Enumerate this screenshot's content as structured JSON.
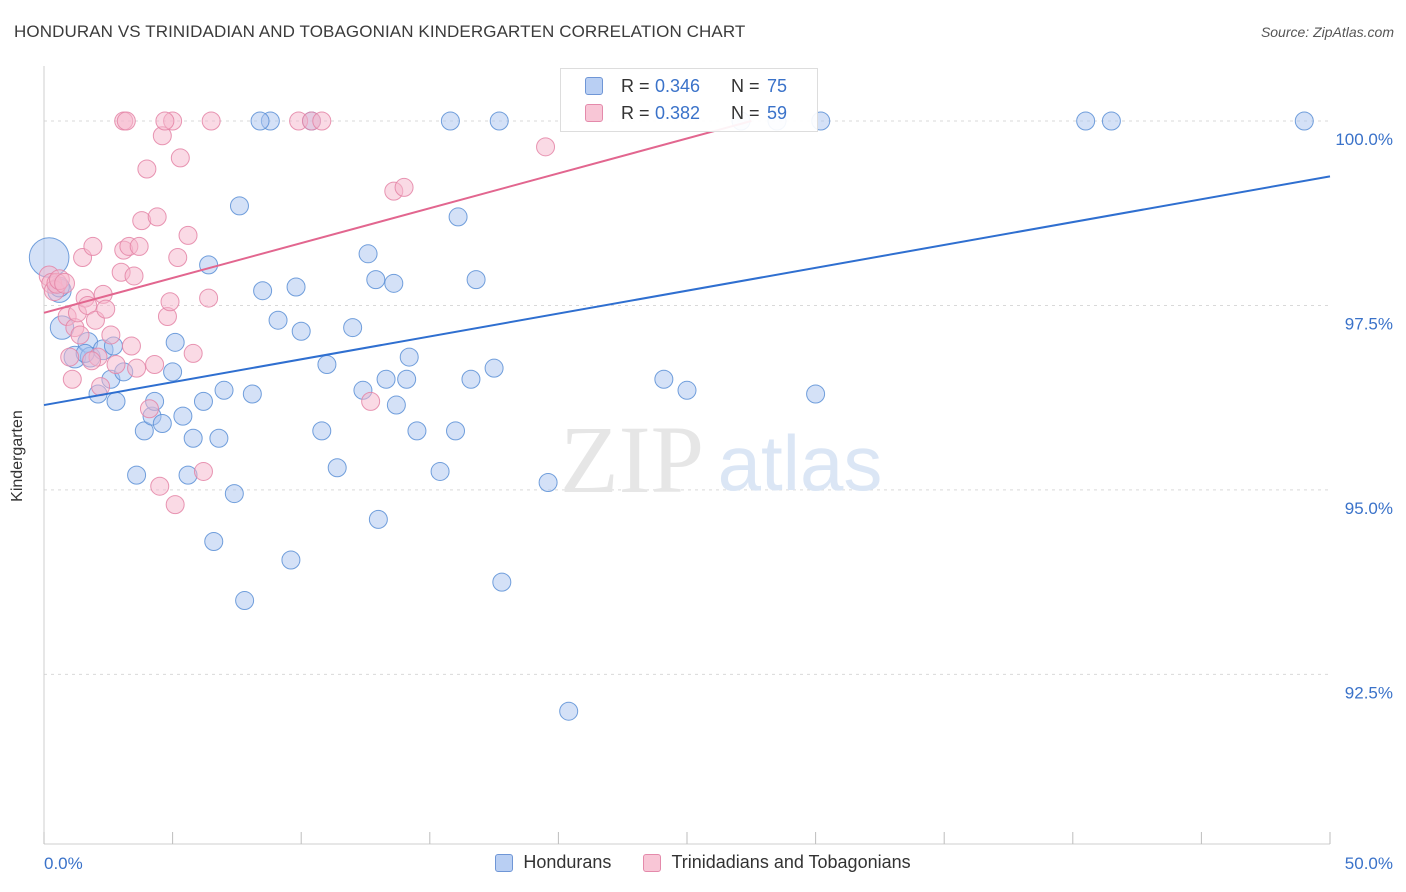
{
  "title": "HONDURAN VS TRINIDADIAN AND TOBAGONIAN KINDERGARTEN CORRELATION CHART",
  "source": "Source: ZipAtlas.com",
  "watermark": {
    "zip": "ZIP",
    "atlas": "atlas"
  },
  "legend": {
    "series1": {
      "r_label": "R =",
      "r_value": "0.346",
      "n_label": "N =",
      "n_value": "75"
    },
    "series2": {
      "r_label": "R =",
      "r_value": "0.382",
      "n_label": "N =",
      "n_value": "59"
    }
  },
  "colors": {
    "blue_fill": "#a9c4ef",
    "blue_stroke": "#5b8fd6",
    "blue_line": "#2f6fd0",
    "pink_fill": "#f6b6cb",
    "pink_stroke": "#e484a6",
    "pink_line": "#e2668f",
    "tick_label": "#3a72c9",
    "grid": "#d9d9d9"
  },
  "chart_data": {
    "type": "scatter",
    "title": "HONDURAN VS TRINIDADIAN AND TOBAGONIAN KINDERGARTEN CORRELATION CHART",
    "xlabel": "",
    "ylabel": "Kindergarten",
    "xlim": [
      0,
      50
    ],
    "ylim": [
      90.2,
      100.8
    ],
    "x_tick_labels": [
      "0.0%",
      "50.0%"
    ],
    "y_ticks": [
      92.5,
      95.0,
      97.5,
      100.0
    ],
    "y_tick_labels": [
      "92.5%",
      "95.0%",
      "97.5%",
      "100.0%"
    ],
    "grid": true,
    "legend_position": "bottom",
    "series": [
      {
        "name": "Hondurans",
        "color": "#a9c4ef",
        "trend": {
          "x": [
            0,
            50
          ],
          "y": [
            96.15,
            99.25
          ]
        },
        "points": [
          [
            0.2,
            98.15,
            22
          ],
          [
            0.6,
            97.7,
            13
          ],
          [
            0.7,
            97.2,
            13
          ],
          [
            1.2,
            96.8,
            12
          ],
          [
            1.7,
            97.0,
            11
          ],
          [
            1.8,
            96.8,
            11
          ],
          [
            2.1,
            96.3,
            10
          ],
          [
            2.3,
            96.9,
            11
          ],
          [
            2.6,
            96.5,
            10
          ],
          [
            2.8,
            96.2,
            10
          ],
          [
            3.1,
            96.6,
            10
          ],
          [
            3.6,
            95.2,
            10
          ],
          [
            3.9,
            95.8,
            10
          ],
          [
            4.2,
            96.0,
            10
          ],
          [
            4.3,
            96.2,
            10
          ],
          [
            4.6,
            95.9,
            10
          ],
          [
            5.0,
            96.6,
            10
          ],
          [
            5.1,
            97.0,
            10
          ],
          [
            5.4,
            96.0,
            10
          ],
          [
            5.6,
            95.2,
            10
          ],
          [
            5.8,
            95.7,
            10
          ],
          [
            6.2,
            96.2,
            10
          ],
          [
            6.4,
            98.05,
            10
          ],
          [
            6.6,
            94.3,
            10
          ],
          [
            6.8,
            95.7,
            10
          ],
          [
            7.0,
            96.35,
            10
          ],
          [
            7.4,
            94.95,
            10
          ],
          [
            7.6,
            98.85,
            10
          ],
          [
            7.8,
            93.5,
            10
          ],
          [
            8.1,
            96.3,
            10
          ],
          [
            8.5,
            97.7,
            10
          ],
          [
            8.8,
            100.0,
            10
          ],
          [
            9.1,
            97.3,
            10
          ],
          [
            9.6,
            94.05,
            10
          ],
          [
            9.8,
            97.75,
            10
          ],
          [
            10.0,
            97.15,
            10
          ],
          [
            10.4,
            100.0,
            10
          ],
          [
            10.8,
            95.8,
            10
          ],
          [
            11.0,
            96.7,
            10
          ],
          [
            11.4,
            95.3,
            10
          ],
          [
            12.0,
            97.2,
            10
          ],
          [
            12.4,
            96.35,
            10
          ],
          [
            12.6,
            98.2,
            10
          ],
          [
            12.9,
            97.85,
            10
          ],
          [
            13.0,
            94.6,
            10
          ],
          [
            13.3,
            96.5,
            10
          ],
          [
            13.6,
            97.8,
            10
          ],
          [
            13.7,
            96.15,
            10
          ],
          [
            14.1,
            96.5,
            10
          ],
          [
            14.2,
            96.8,
            10
          ],
          [
            14.5,
            95.8,
            10
          ],
          [
            15.4,
            95.25,
            10
          ],
          [
            15.8,
            100.0,
            10
          ],
          [
            16.0,
            95.8,
            10
          ],
          [
            16.1,
            98.7,
            10
          ],
          [
            16.6,
            96.5,
            10
          ],
          [
            16.8,
            97.85,
            10
          ],
          [
            17.5,
            96.65,
            10
          ],
          [
            17.7,
            100.0,
            10
          ],
          [
            17.8,
            93.75,
            10
          ],
          [
            19.6,
            95.1,
            10
          ],
          [
            20.4,
            92.0,
            10
          ],
          [
            24.1,
            96.5,
            10
          ],
          [
            25.0,
            96.35,
            10
          ],
          [
            28.5,
            100.0,
            10
          ],
          [
            30.0,
            96.3,
            10
          ],
          [
            30.2,
            100.0,
            10
          ],
          [
            40.5,
            100.0,
            10
          ],
          [
            41.5,
            100.0,
            10
          ],
          [
            49.0,
            100.0,
            10
          ],
          [
            0.6,
            97.75,
            11
          ],
          [
            2.7,
            96.95,
            10
          ],
          [
            1.6,
            96.85,
            10
          ],
          [
            8.4,
            100.0,
            10
          ],
          [
            27.1,
            100.0,
            10
          ]
        ]
      },
      {
        "name": "Trinidadians and Tobagonians",
        "color": "#f6b6cb",
        "trend": {
          "x": [
            0,
            27.5
          ],
          "y": [
            97.4,
            100.0
          ]
        },
        "points": [
          [
            0.2,
            97.9,
            11
          ],
          [
            0.3,
            97.8,
            11
          ],
          [
            0.4,
            97.7,
            11
          ],
          [
            0.5,
            97.8,
            11
          ],
          [
            0.6,
            97.85,
            11
          ],
          [
            0.8,
            97.8,
            11
          ],
          [
            0.9,
            97.35,
            10
          ],
          [
            1.0,
            96.8,
            10
          ],
          [
            1.1,
            96.5,
            10
          ],
          [
            1.2,
            97.2,
            10
          ],
          [
            1.3,
            97.4,
            10
          ],
          [
            1.4,
            97.1,
            10
          ],
          [
            1.5,
            98.15,
            10
          ],
          [
            1.6,
            97.6,
            10
          ],
          [
            1.7,
            97.5,
            10
          ],
          [
            1.9,
            98.3,
            10
          ],
          [
            2.0,
            97.3,
            10
          ],
          [
            2.1,
            96.8,
            10
          ],
          [
            2.2,
            96.4,
            10
          ],
          [
            2.3,
            97.65,
            10
          ],
          [
            2.4,
            97.45,
            10
          ],
          [
            2.6,
            97.1,
            10
          ],
          [
            2.8,
            96.7,
            10
          ],
          [
            3.0,
            97.95,
            10
          ],
          [
            3.1,
            98.25,
            10
          ],
          [
            3.3,
            98.3,
            10
          ],
          [
            3.4,
            96.95,
            10
          ],
          [
            3.5,
            97.9,
            10
          ],
          [
            3.6,
            96.65,
            10
          ],
          [
            3.7,
            98.3,
            10
          ],
          [
            3.8,
            98.65,
            10
          ],
          [
            4.0,
            99.35,
            10
          ],
          [
            4.1,
            96.1,
            10
          ],
          [
            4.3,
            96.7,
            10
          ],
          [
            4.4,
            98.7,
            10
          ],
          [
            4.5,
            95.05,
            10
          ],
          [
            4.6,
            99.8,
            10
          ],
          [
            4.8,
            97.35,
            10
          ],
          [
            4.9,
            97.55,
            10
          ],
          [
            5.0,
            100.0,
            10
          ],
          [
            5.1,
            94.8,
            10
          ],
          [
            5.2,
            98.15,
            10
          ],
          [
            5.3,
            99.5,
            10
          ],
          [
            5.6,
            98.45,
            10
          ],
          [
            5.8,
            96.85,
            10
          ],
          [
            6.2,
            95.25,
            10
          ],
          [
            6.4,
            97.6,
            10
          ],
          [
            6.5,
            100.0,
            10
          ],
          [
            9.9,
            100.0,
            10
          ],
          [
            10.4,
            100.0,
            10
          ],
          [
            10.8,
            100.0,
            10
          ],
          [
            12.7,
            96.2,
            10
          ],
          [
            13.6,
            99.05,
            10
          ],
          [
            14.0,
            99.1,
            10
          ],
          [
            19.5,
            99.65,
            10
          ],
          [
            3.1,
            100.0,
            10
          ],
          [
            3.2,
            100.0,
            10
          ],
          [
            4.7,
            100.0,
            10
          ],
          [
            1.85,
            96.75,
            10
          ]
        ]
      }
    ]
  },
  "bottom_legend": {
    "item1": "Hondurans",
    "item2": "Trinidadians and Tobagonians"
  }
}
